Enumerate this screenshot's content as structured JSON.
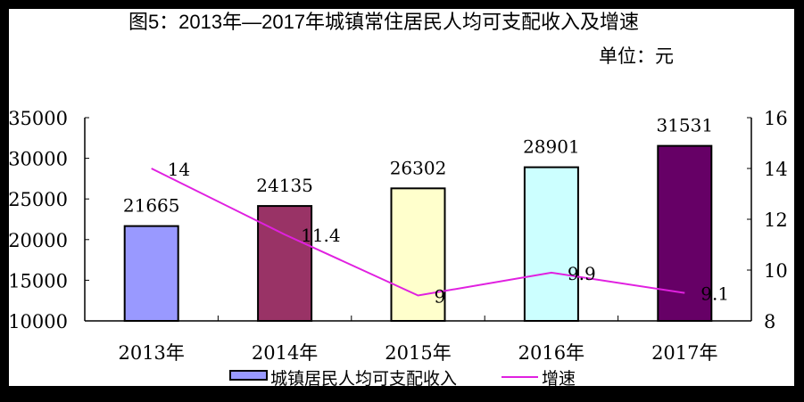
{
  "chart_data": {
    "type": "bar",
    "title": "图5：2013年—2017年城镇常住居民人均可支配收入及增速",
    "unit_label": "单位：元",
    "categories": [
      "2013年",
      "2014年",
      "2015年",
      "2016年",
      "2017年"
    ],
    "series": [
      {
        "name": "城镇居民人均可支配收入",
        "type": "bar",
        "axis": "left",
        "values": [
          21665,
          24135,
          26302,
          28901,
          31531
        ],
        "colors": [
          "#9999FF",
          "#993366",
          "#FFFFCC",
          "#CCFFFF",
          "#660066"
        ]
      },
      {
        "name": "增速",
        "type": "line",
        "axis": "right",
        "values": [
          14,
          11.4,
          9,
          9.9,
          9.1
        ],
        "data_labels": [
          "14",
          "11.4",
          "9",
          "9.9",
          "9.1"
        ],
        "color": "#E020E0"
      }
    ],
    "y_left": {
      "range": [
        10000,
        35000
      ],
      "ticks": [
        10000,
        15000,
        20000,
        25000,
        30000,
        35000
      ]
    },
    "y_right": {
      "range": [
        8,
        16
      ],
      "ticks": [
        8,
        10,
        12,
        14,
        16
      ]
    },
    "grid": false,
    "legend_placement": "bottom"
  }
}
